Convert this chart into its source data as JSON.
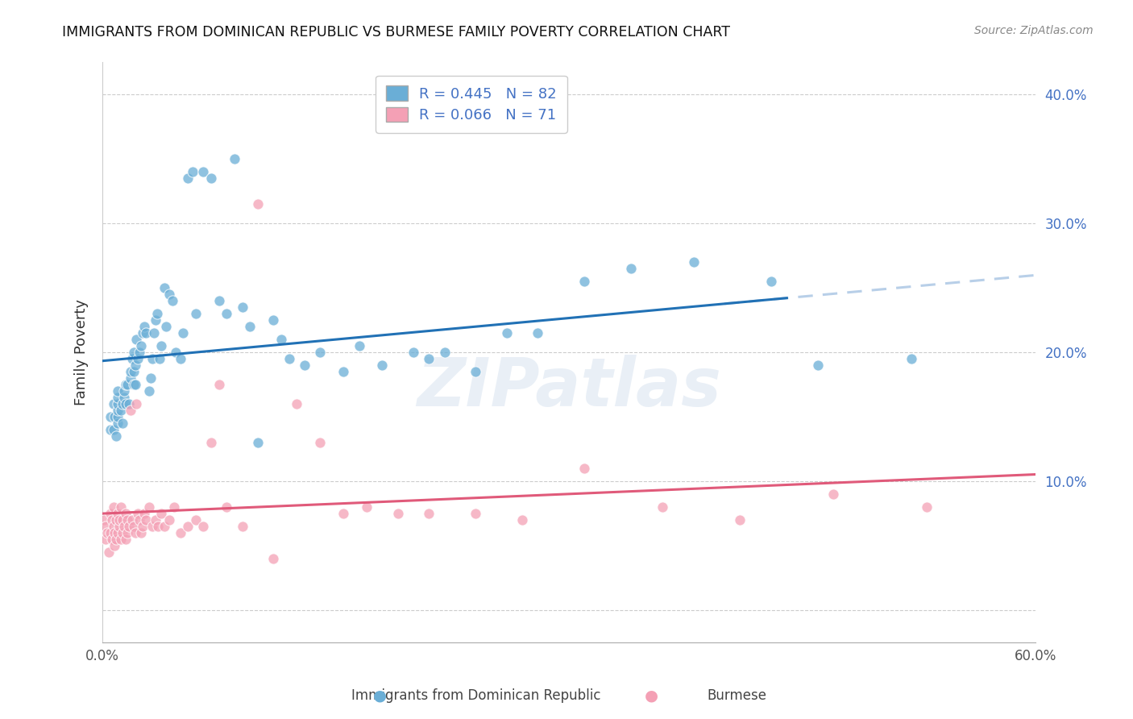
{
  "title": "IMMIGRANTS FROM DOMINICAN REPUBLIC VS BURMESE FAMILY POVERTY CORRELATION CHART",
  "source": "Source: ZipAtlas.com",
  "ylabel": "Family Poverty",
  "xlim": [
    0.0,
    0.6
  ],
  "ylim": [
    -0.025,
    0.425
  ],
  "yticks": [
    0.0,
    0.1,
    0.2,
    0.3,
    0.4
  ],
  "ytick_labels": [
    "",
    "10.0%",
    "20.0%",
    "30.0%",
    "40.0%"
  ],
  "blue_R": 0.445,
  "blue_N": 82,
  "pink_R": 0.066,
  "pink_N": 71,
  "blue_color": "#6aaed6",
  "pink_color": "#f4a0b5",
  "blue_line_color": "#2171b5",
  "pink_line_color": "#e05a7a",
  "blue_dash_color": "#b8cfe8",
  "watermark": "ZIPatlas",
  "legend_label_blue": "Immigrants from Dominican Republic",
  "legend_label_pink": "Burmese",
  "blue_scatter_x": [
    0.005,
    0.005,
    0.007,
    0.007,
    0.008,
    0.009,
    0.01,
    0.01,
    0.01,
    0.01,
    0.01,
    0.01,
    0.012,
    0.013,
    0.013,
    0.014,
    0.014,
    0.015,
    0.015,
    0.016,
    0.017,
    0.018,
    0.018,
    0.019,
    0.02,
    0.02,
    0.02,
    0.021,
    0.021,
    0.022,
    0.023,
    0.024,
    0.025,
    0.026,
    0.027,
    0.028,
    0.03,
    0.031,
    0.032,
    0.033,
    0.034,
    0.035,
    0.037,
    0.038,
    0.04,
    0.041,
    0.043,
    0.045,
    0.047,
    0.05,
    0.052,
    0.055,
    0.058,
    0.06,
    0.065,
    0.07,
    0.075,
    0.08,
    0.085,
    0.09,
    0.095,
    0.1,
    0.11,
    0.115,
    0.12,
    0.13,
    0.14,
    0.155,
    0.165,
    0.18,
    0.2,
    0.21,
    0.22,
    0.24,
    0.26,
    0.28,
    0.31,
    0.34,
    0.38,
    0.43,
    0.46,
    0.52
  ],
  "blue_scatter_y": [
    0.14,
    0.15,
    0.14,
    0.16,
    0.15,
    0.135,
    0.145,
    0.15,
    0.155,
    0.16,
    0.165,
    0.17,
    0.155,
    0.145,
    0.16,
    0.165,
    0.17,
    0.16,
    0.175,
    0.175,
    0.16,
    0.18,
    0.185,
    0.195,
    0.175,
    0.185,
    0.2,
    0.175,
    0.19,
    0.21,
    0.195,
    0.2,
    0.205,
    0.215,
    0.22,
    0.215,
    0.17,
    0.18,
    0.195,
    0.215,
    0.225,
    0.23,
    0.195,
    0.205,
    0.25,
    0.22,
    0.245,
    0.24,
    0.2,
    0.195,
    0.215,
    0.335,
    0.34,
    0.23,
    0.34,
    0.335,
    0.24,
    0.23,
    0.35,
    0.235,
    0.22,
    0.13,
    0.225,
    0.21,
    0.195,
    0.19,
    0.2,
    0.185,
    0.205,
    0.19,
    0.2,
    0.195,
    0.2,
    0.185,
    0.215,
    0.215,
    0.255,
    0.265,
    0.27,
    0.255,
    0.19,
    0.195
  ],
  "pink_scatter_x": [
    0.001,
    0.002,
    0.002,
    0.003,
    0.004,
    0.005,
    0.005,
    0.006,
    0.006,
    0.007,
    0.007,
    0.008,
    0.008,
    0.009,
    0.009,
    0.01,
    0.01,
    0.011,
    0.011,
    0.012,
    0.012,
    0.013,
    0.013,
    0.014,
    0.015,
    0.015,
    0.016,
    0.016,
    0.017,
    0.018,
    0.019,
    0.02,
    0.021,
    0.022,
    0.023,
    0.024,
    0.025,
    0.026,
    0.027,
    0.028,
    0.03,
    0.032,
    0.034,
    0.036,
    0.038,
    0.04,
    0.043,
    0.046,
    0.05,
    0.055,
    0.06,
    0.065,
    0.07,
    0.075,
    0.08,
    0.09,
    0.1,
    0.11,
    0.125,
    0.14,
    0.155,
    0.17,
    0.19,
    0.21,
    0.24,
    0.27,
    0.31,
    0.36,
    0.41,
    0.47,
    0.53
  ],
  "pink_scatter_y": [
    0.07,
    0.055,
    0.065,
    0.06,
    0.045,
    0.075,
    0.06,
    0.07,
    0.055,
    0.08,
    0.065,
    0.05,
    0.06,
    0.055,
    0.07,
    0.075,
    0.06,
    0.065,
    0.07,
    0.055,
    0.08,
    0.07,
    0.06,
    0.065,
    0.055,
    0.075,
    0.06,
    0.07,
    0.065,
    0.155,
    0.07,
    0.065,
    0.06,
    0.16,
    0.075,
    0.07,
    0.06,
    0.065,
    0.075,
    0.07,
    0.08,
    0.065,
    0.07,
    0.065,
    0.075,
    0.065,
    0.07,
    0.08,
    0.06,
    0.065,
    0.07,
    0.065,
    0.13,
    0.175,
    0.08,
    0.065,
    0.315,
    0.04,
    0.16,
    0.13,
    0.075,
    0.08,
    0.075,
    0.075,
    0.075,
    0.07,
    0.11,
    0.08,
    0.07,
    0.09,
    0.08
  ]
}
